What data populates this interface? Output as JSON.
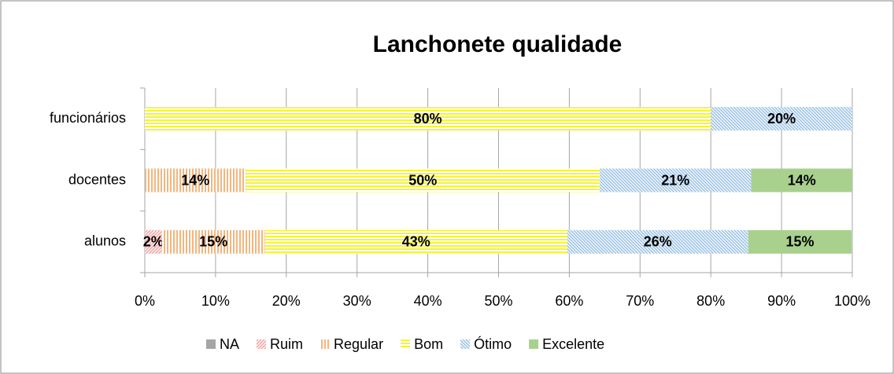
{
  "chart_data": {
    "type": "stacked-bar-horizontal",
    "title": "Lanchonete qualidade",
    "categories": [
      "funcionários",
      "docentes",
      "alunos"
    ],
    "series": [
      {
        "name": "NA",
        "color": "#a5a5a5",
        "pattern": "solid",
        "values": [
          null,
          null,
          null
        ],
        "value_labels": [
          null,
          null,
          null
        ]
      },
      {
        "name": "Ruim",
        "color": "#f4a6a6",
        "pattern": "diagonal",
        "values": [
          null,
          null,
          2.4
        ],
        "value_labels": [
          null,
          null,
          "2%"
        ]
      },
      {
        "name": "Regular",
        "color": "#f0a35e",
        "pattern": "vertical",
        "values": [
          null,
          14.3,
          14.6
        ],
        "value_labels": [
          null,
          "14%",
          "15%"
        ]
      },
      {
        "name": "Bom",
        "color": "#f2f200",
        "pattern": "horizontal",
        "values": [
          80,
          50,
          42.7
        ],
        "value_labels": [
          "80%",
          "50%",
          "43%"
        ]
      },
      {
        "name": "Ótimo",
        "color": "#9dc3e6",
        "pattern": "diagonal-back",
        "values": [
          20,
          21.4,
          25.6
        ],
        "value_labels": [
          "20%",
          "21%",
          "26%"
        ]
      },
      {
        "name": "Excelente",
        "color": "#a9d18e",
        "pattern": "solid",
        "values": [
          null,
          14.3,
          14.6
        ],
        "value_labels": [
          null,
          "14%",
          "15%"
        ]
      }
    ],
    "xlim": [
      0,
      100
    ],
    "xticks": [
      {
        "value": 0,
        "label": "0%"
      },
      {
        "value": 10,
        "label": "10%"
      },
      {
        "value": 20,
        "label": "20%"
      },
      {
        "value": 30,
        "label": "30%"
      },
      {
        "value": 40,
        "label": "40%"
      },
      {
        "value": 50,
        "label": "50%"
      },
      {
        "value": 60,
        "label": "60%"
      },
      {
        "value": 70,
        "label": "70%"
      },
      {
        "value": 80,
        "label": "80%"
      },
      {
        "value": 90,
        "label": "90%"
      },
      {
        "value": 100,
        "label": "100%"
      }
    ],
    "grid": true,
    "legend": "bottom"
  }
}
